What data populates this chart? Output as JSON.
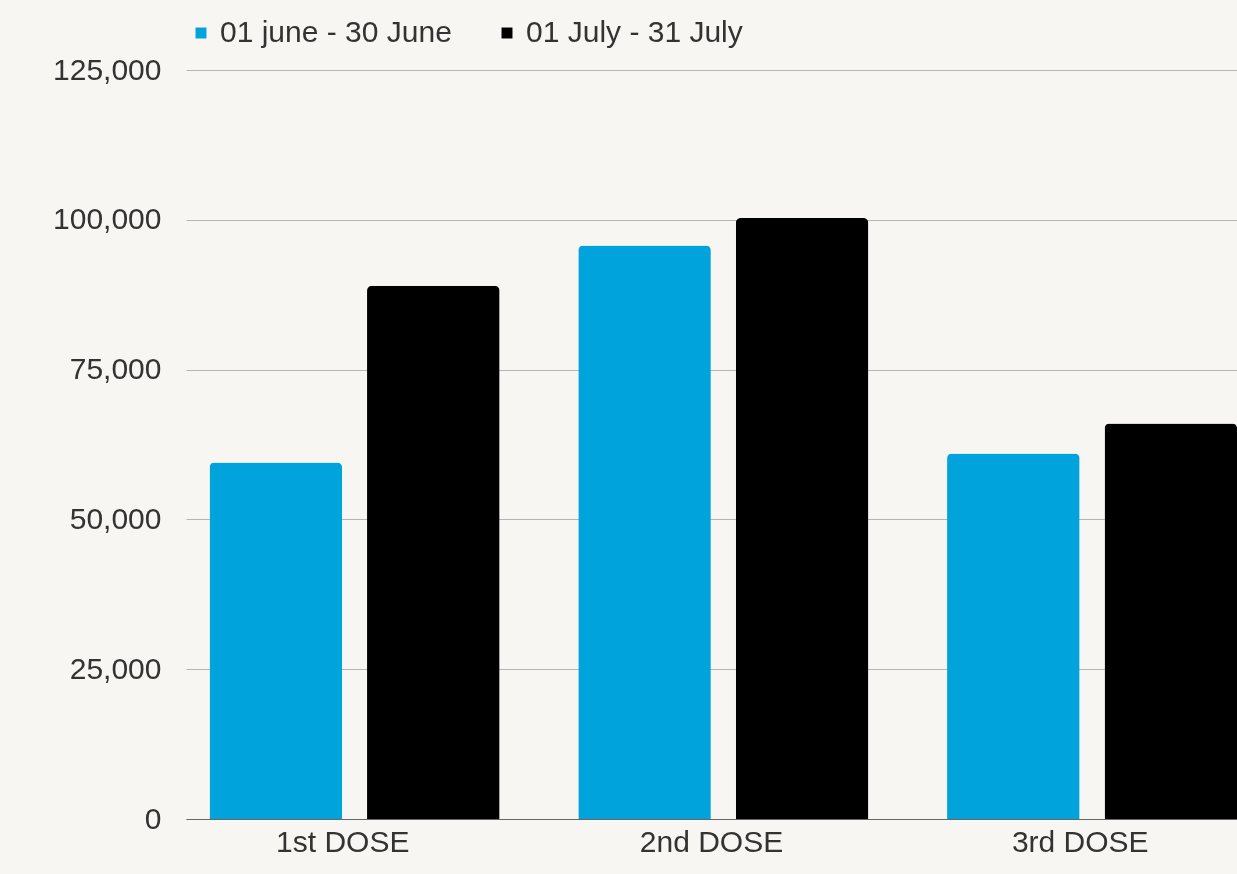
{
  "chart_data": {
    "type": "bar",
    "categories": [
      "1st DOSE",
      "2nd DOSE",
      "3rd DOSE"
    ],
    "series": [
      {
        "name": "01 june - 30 June",
        "color": "#00a3dc",
        "values": [
          59500,
          95700,
          61000
        ]
      },
      {
        "name": "01 July - 31 July",
        "color": "#000000",
        "values": [
          89000,
          100300,
          66000
        ]
      }
    ],
    "ylim": [
      0,
      125000
    ],
    "yticks": [
      0,
      {
        "value": 25000,
        "label": "25,000"
      },
      {
        "value": 50000,
        "label": "50,000"
      },
      {
        "value": 75000,
        "label": "75,000"
      },
      {
        "value": 100000,
        "label": "100,000"
      },
      {
        "value": 125000,
        "label": "125,000"
      }
    ],
    "grid": "y",
    "legend": "top"
  }
}
